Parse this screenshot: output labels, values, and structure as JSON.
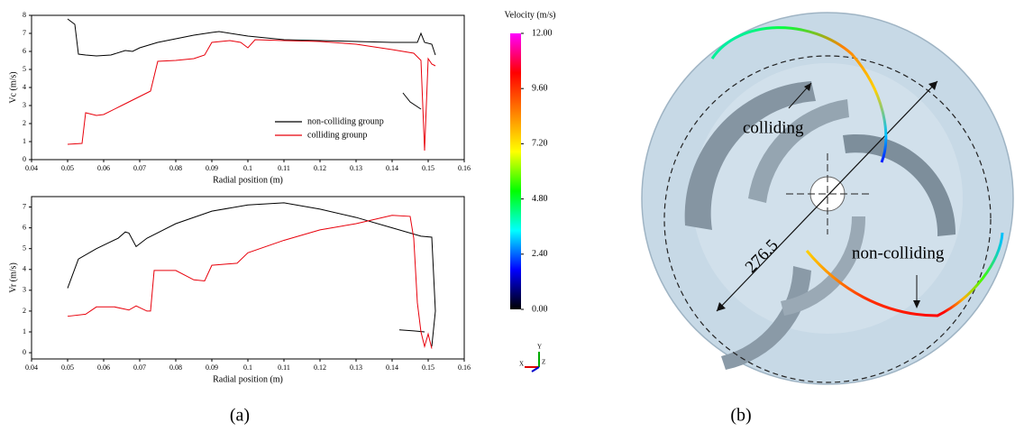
{
  "chart_data": [
    {
      "type": "line",
      "x_label": "Radial position (m)",
      "y_label": "Vc (m/s)",
      "xlim": [
        0.04,
        0.16
      ],
      "xticks": [
        0.04,
        0.05,
        0.06,
        0.07,
        0.08,
        0.09,
        0.1,
        0.11,
        0.12,
        0.13,
        0.14,
        0.15,
        0.16
      ],
      "ylim": [
        0,
        8
      ],
      "yticks": [
        0,
        1,
        2,
        3,
        4,
        5,
        6,
        7,
        8
      ],
      "legend": "lower-right",
      "series": [
        {
          "name": "non-colliding grounp",
          "color": "#000000",
          "x": [
            0.05,
            0.052,
            0.053,
            0.055,
            0.058,
            0.062,
            0.066,
            0.068,
            0.07,
            0.075,
            0.08,
            0.085,
            0.09,
            0.092,
            0.1,
            0.11,
            0.12,
            0.13,
            0.14,
            0.147,
            0.148,
            0.149,
            0.151,
            0.152,
            null,
            0.143,
            0.145,
            0.148
          ],
          "values": [
            7.8,
            7.5,
            5.85,
            5.8,
            5.75,
            5.8,
            6.05,
            6.0,
            6.2,
            6.5,
            6.7,
            6.9,
            7.05,
            7.1,
            6.85,
            6.65,
            6.6,
            6.55,
            6.5,
            6.5,
            7.0,
            6.5,
            6.4,
            5.8,
            null,
            3.7,
            3.2,
            2.8
          ]
        },
        {
          "name": "colliding grounp",
          "color": "#e8000b",
          "x": [
            0.05,
            0.054,
            0.055,
            0.058,
            0.06,
            0.065,
            0.07,
            0.073,
            0.075,
            0.08,
            0.085,
            0.088,
            0.09,
            0.095,
            0.098,
            0.1,
            0.102,
            0.11,
            0.12,
            0.13,
            0.14,
            0.146,
            0.148,
            0.149,
            0.15,
            0.151,
            0.152
          ],
          "values": [
            0.85,
            0.9,
            2.6,
            2.45,
            2.5,
            3.0,
            3.5,
            3.8,
            5.45,
            5.5,
            5.6,
            5.8,
            6.5,
            6.6,
            6.5,
            6.2,
            6.65,
            6.6,
            6.55,
            6.4,
            6.1,
            5.9,
            5.5,
            0.5,
            5.6,
            5.3,
            5.2
          ]
        }
      ]
    },
    {
      "type": "line",
      "x_label": "Radial position (m)",
      "y_label": "Vr (m/s)",
      "xlim": [
        0.04,
        0.16
      ],
      "xticks": [
        0.04,
        0.05,
        0.06,
        0.07,
        0.08,
        0.09,
        0.1,
        0.11,
        0.12,
        0.13,
        0.14,
        0.15,
        0.16
      ],
      "ylim": [
        -0.3,
        7.5
      ],
      "yticks": [
        0,
        1,
        2,
        3,
        4,
        5,
        6,
        7
      ],
      "series": [
        {
          "color": "#000000",
          "x": [
            0.05,
            0.053,
            0.058,
            0.064,
            0.066,
            0.067,
            0.069,
            0.072,
            0.08,
            0.09,
            0.1,
            0.11,
            0.12,
            0.13,
            0.14,
            0.148,
            0.151,
            0.152,
            0.151,
            null,
            0.142,
            0.146,
            0.149
          ],
          "values": [
            3.1,
            4.5,
            5.0,
            5.5,
            5.8,
            5.75,
            5.1,
            5.5,
            6.2,
            6.8,
            7.1,
            7.2,
            6.9,
            6.5,
            6.0,
            5.6,
            5.55,
            2.0,
            0.3,
            null,
            1.1,
            1.05,
            1.0
          ]
        },
        {
          "color": "#e8000b",
          "x": [
            0.05,
            0.055,
            0.058,
            0.063,
            0.067,
            0.069,
            0.072,
            0.073,
            0.074,
            0.08,
            0.085,
            0.088,
            0.09,
            0.097,
            0.1,
            0.11,
            0.12,
            0.13,
            0.14,
            0.145,
            0.146,
            0.147,
            0.148,
            0.149,
            0.15,
            0.151
          ],
          "values": [
            1.75,
            1.85,
            2.2,
            2.2,
            2.05,
            2.25,
            2.0,
            2.0,
            3.95,
            3.95,
            3.5,
            3.45,
            4.2,
            4.3,
            4.8,
            5.4,
            5.9,
            6.2,
            6.6,
            6.55,
            5.5,
            2.4,
            1.0,
            0.3,
            0.9,
            0.2
          ]
        }
      ]
    },
    {
      "type": "colorbar",
      "title": "Velocity (m/s)",
      "ylim": [
        0,
        12
      ],
      "yticks": [
        {
          "value": 0,
          "label": "0.00"
        },
        {
          "value": 2.4,
          "label": "2.40"
        },
        {
          "value": 4.8,
          "label": "4.80"
        },
        {
          "value": 7.2,
          "label": "7.20"
        },
        {
          "value": 9.6,
          "label": "9.60"
        },
        {
          "value": 12,
          "label": "12.00"
        }
      ],
      "colors": [
        "#000000",
        "#0000ff",
        "#00ffff",
        "#00ff00",
        "#ffff00",
        "#ff8000",
        "#ff0000",
        "#ff00ff"
      ]
    }
  ],
  "axis_triad": {
    "x": "X",
    "y": "Y",
    "z": "Z"
  },
  "image": {
    "colliding": "colliding",
    "non_colliding": "non-colliding",
    "diameter": "276.5"
  },
  "panel_labels": [
    "(a)",
    "(b)"
  ]
}
